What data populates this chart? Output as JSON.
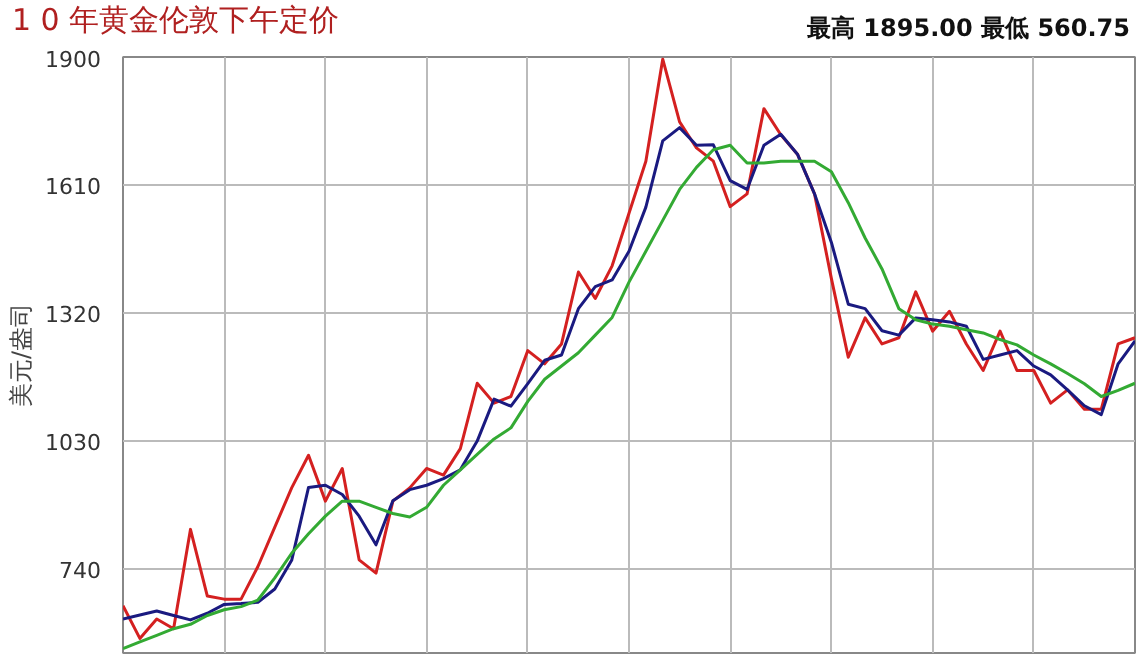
{
  "chart_data": {
    "type": "line",
    "title": "1 0 年黄金伦敦下午定价",
    "annotations": [
      "最高 1895.00  最低 560.75"
    ],
    "ylabel": "美元/盎司",
    "categories": [
      null,
      null,
      null,
      null,
      null,
      null,
      null,
      null,
      null,
      null,
      null,
      null,
      null,
      null,
      null,
      null,
      null,
      null,
      null,
      null,
      null,
      null,
      null,
      null,
      null,
      null,
      null,
      null,
      null,
      null,
      null,
      null,
      null,
      null,
      null,
      null,
      null,
      null,
      null,
      null,
      null,
      null,
      null,
      null,
      null,
      null,
      null,
      null,
      null,
      null,
      null,
      null,
      null,
      null,
      null,
      null,
      null,
      null,
      null,
      null,
      null
    ],
    "series": [
      {
        "color": "#d42020",
        "values": [
          657,
          583,
          627,
          605,
          830,
          679,
          672,
          672,
          746,
          835,
          924,
          998,
          894,
          968,
          761,
          731,
          894,
          924,
          968,
          953,
          1013,
          1161,
          1116,
          1131,
          1235,
          1205,
          1250,
          1413,
          1353,
          1427,
          1546,
          1664,
          1895,
          1753,
          1694,
          1664,
          1561,
          1590,
          1783,
          1724,
          1679,
          1590,
          1398,
          1220,
          1309,
          1250,
          1264,
          1368,
          1279,
          1324,
          1250,
          1190,
          1279,
          1190,
          1190,
          1116,
          1146,
          1102,
          1102,
          1250,
          1264
        ]
      },
      {
        "color": "#1a1a80",
        "values": [
          627,
          636,
          645,
          635,
          625,
          640,
          660,
          662,
          665,
          695,
          760,
          925,
          930,
          909,
          860,
          795,
          895,
          920,
          930,
          945,
          965,
          1030,
          1125,
          1109,
          1160,
          1213,
          1225,
          1330,
          1380,
          1395,
          1460,
          1560,
          1710,
          1740,
          1700,
          1701,
          1620,
          1600,
          1700,
          1725,
          1679,
          1590,
          1480,
          1340,
          1330,
          1280,
          1270,
          1309,
          1305,
          1300,
          1290,
          1215,
          1225,
          1235,
          1200,
          1180,
          1146,
          1110,
          1090,
          1205,
          1257
        ]
      },
      {
        "color": "#33aa33",
        "values": [
          560,
          575,
          590,
          605,
          615,
          635,
          648,
          655,
          670,
          720,
          776,
          820,
          860,
          894,
          894,
          880,
          866,
          858,
          880,
          930,
          965,
          1000,
          1035,
          1060,
          1120,
          1170,
          1200,
          1230,
          1270,
          1310,
          1390,
          1460,
          1530,
          1600,
          1650,
          1690,
          1700,
          1660,
          1660,
          1664,
          1664,
          1664,
          1640,
          1570,
          1490,
          1420,
          1330,
          1305,
          1295,
          1290,
          1282,
          1275,
          1260,
          1248,
          1225,
          1205,
          1183,
          1160,
          1131,
          1145,
          1161
        ]
      }
    ],
    "ylim": [
      550,
      1900
    ],
    "yticks": [
      740,
      1030,
      1320,
      1610,
      1900
    ],
    "grid": true,
    "tick_labels": "y",
    "marker": "none",
    "line_style": "solid"
  }
}
